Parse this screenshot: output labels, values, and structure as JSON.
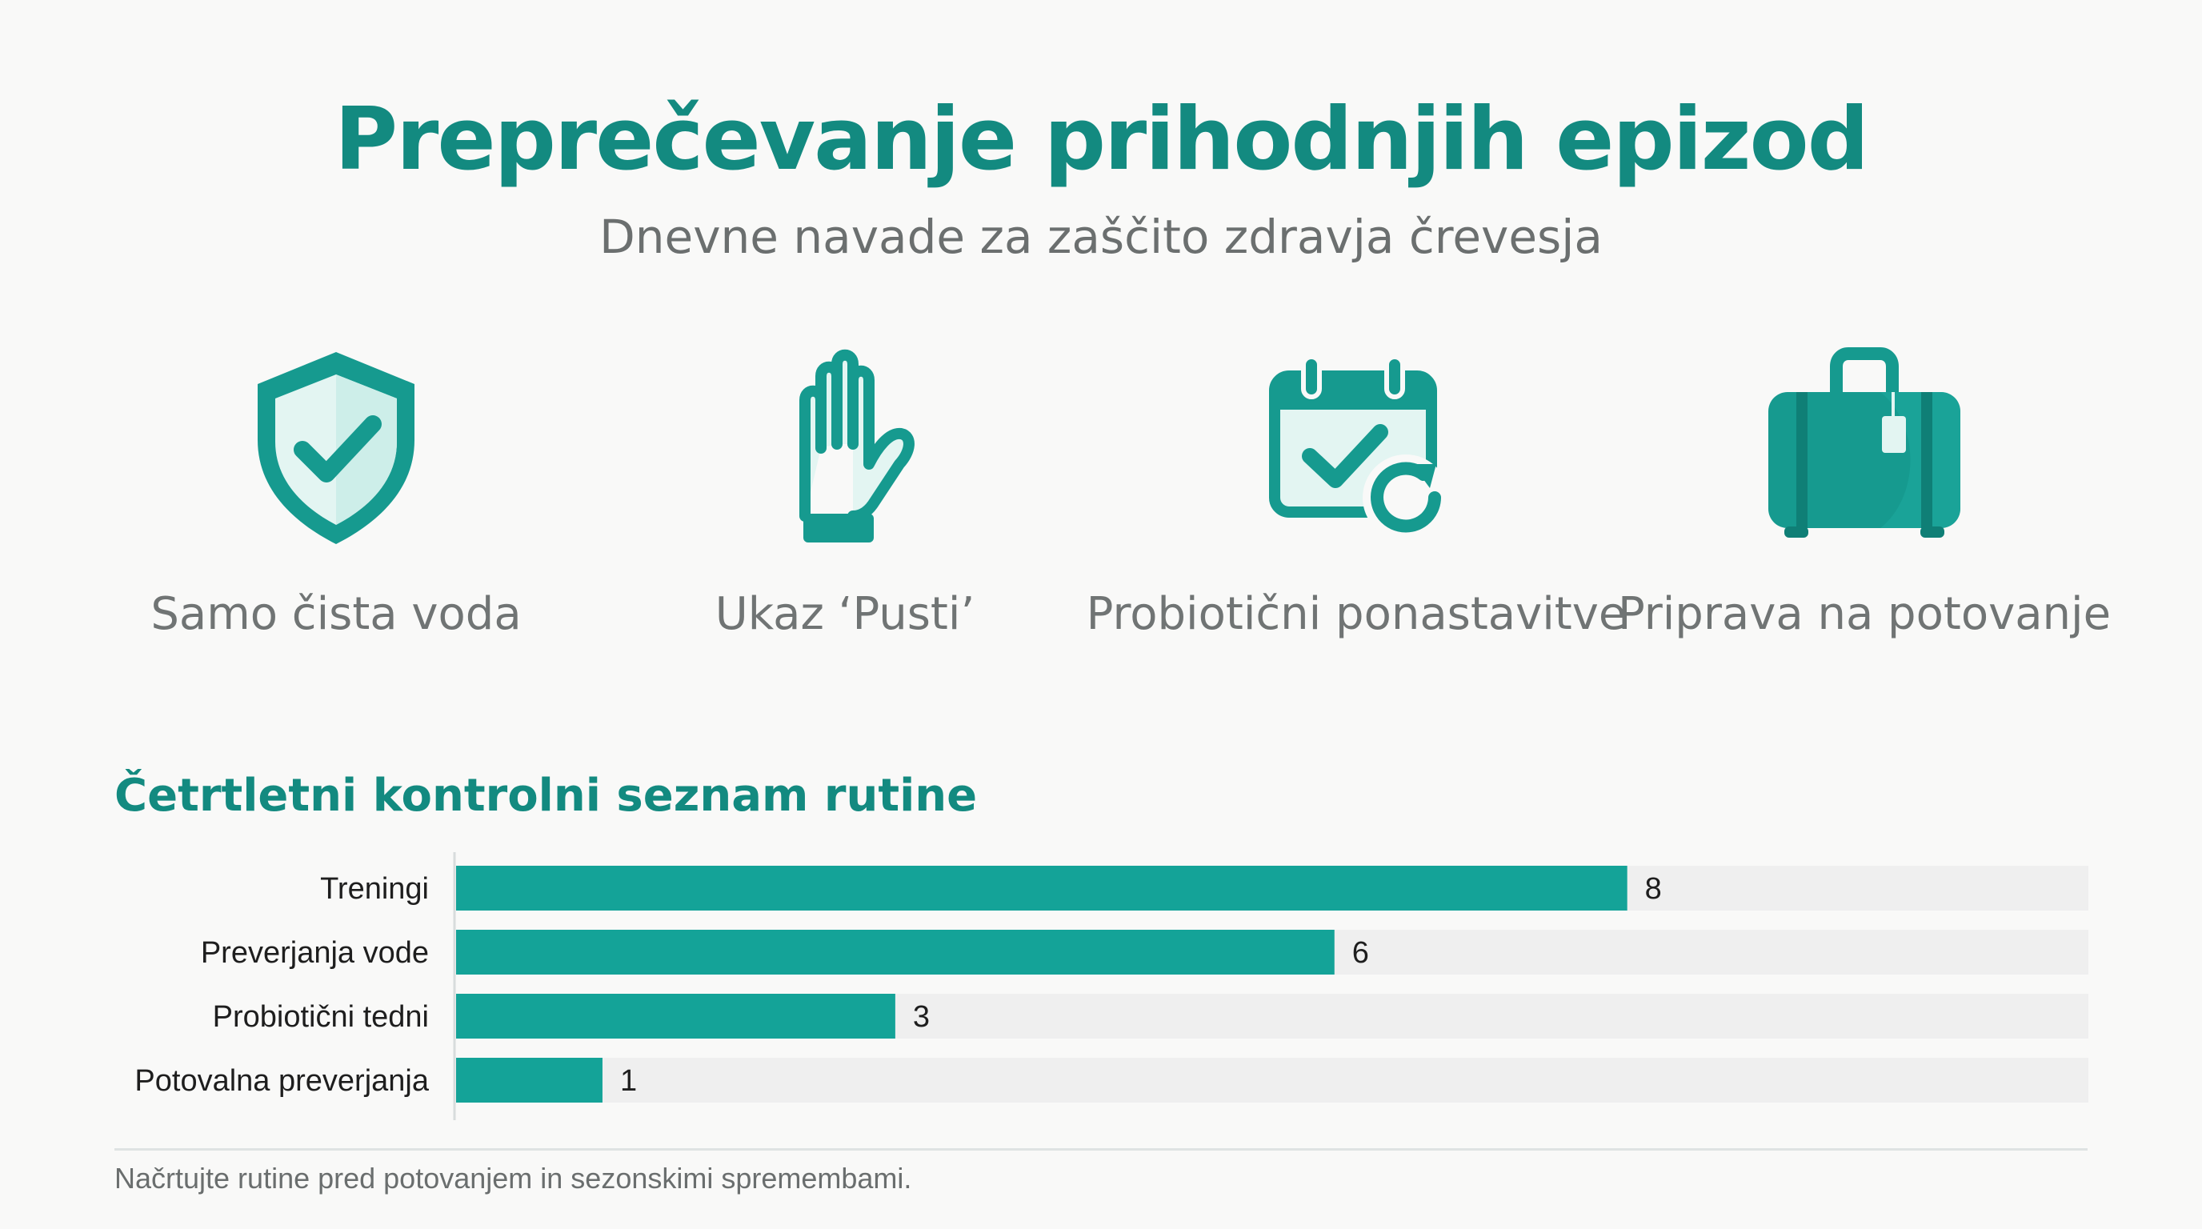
{
  "title": "Preprečevanje prihodnjih epizod",
  "subtitle": "Dnevne navade za zaščito zdravja črevesja",
  "colors": {
    "accent": "#138a80",
    "bar": "#14a398",
    "track": "#efefef",
    "text": "#1e1e1e"
  },
  "features": [
    {
      "icon": "shield-check-icon",
      "label": "Samo čista voda"
    },
    {
      "icon": "hand-stop-icon",
      "label": "Ukaz ‘Pusti’"
    },
    {
      "icon": "calendar-check-refresh-icon",
      "label": "Probiotični ponastavitve"
    },
    {
      "icon": "suitcase-icon",
      "label": "Priprava na potovanje"
    }
  ],
  "checklist_title": "Četrtletni kontrolni seznam rutine",
  "chart_data": {
    "type": "bar",
    "orientation": "horizontal",
    "title": "Četrtletni kontrolni seznam rutine",
    "categories": [
      "Treningi",
      "Preverjanja vode",
      "Probiotični tedni",
      "Potovalna preverjanja"
    ],
    "values": [
      8,
      6,
      3,
      1
    ],
    "xlim": [
      0,
      11.15
    ],
    "xlabel": "",
    "ylabel": "",
    "grid": false,
    "data_labels": true
  },
  "footnote": "Načrtujte rutine pred potovanjem in sezonskimi spremembami."
}
